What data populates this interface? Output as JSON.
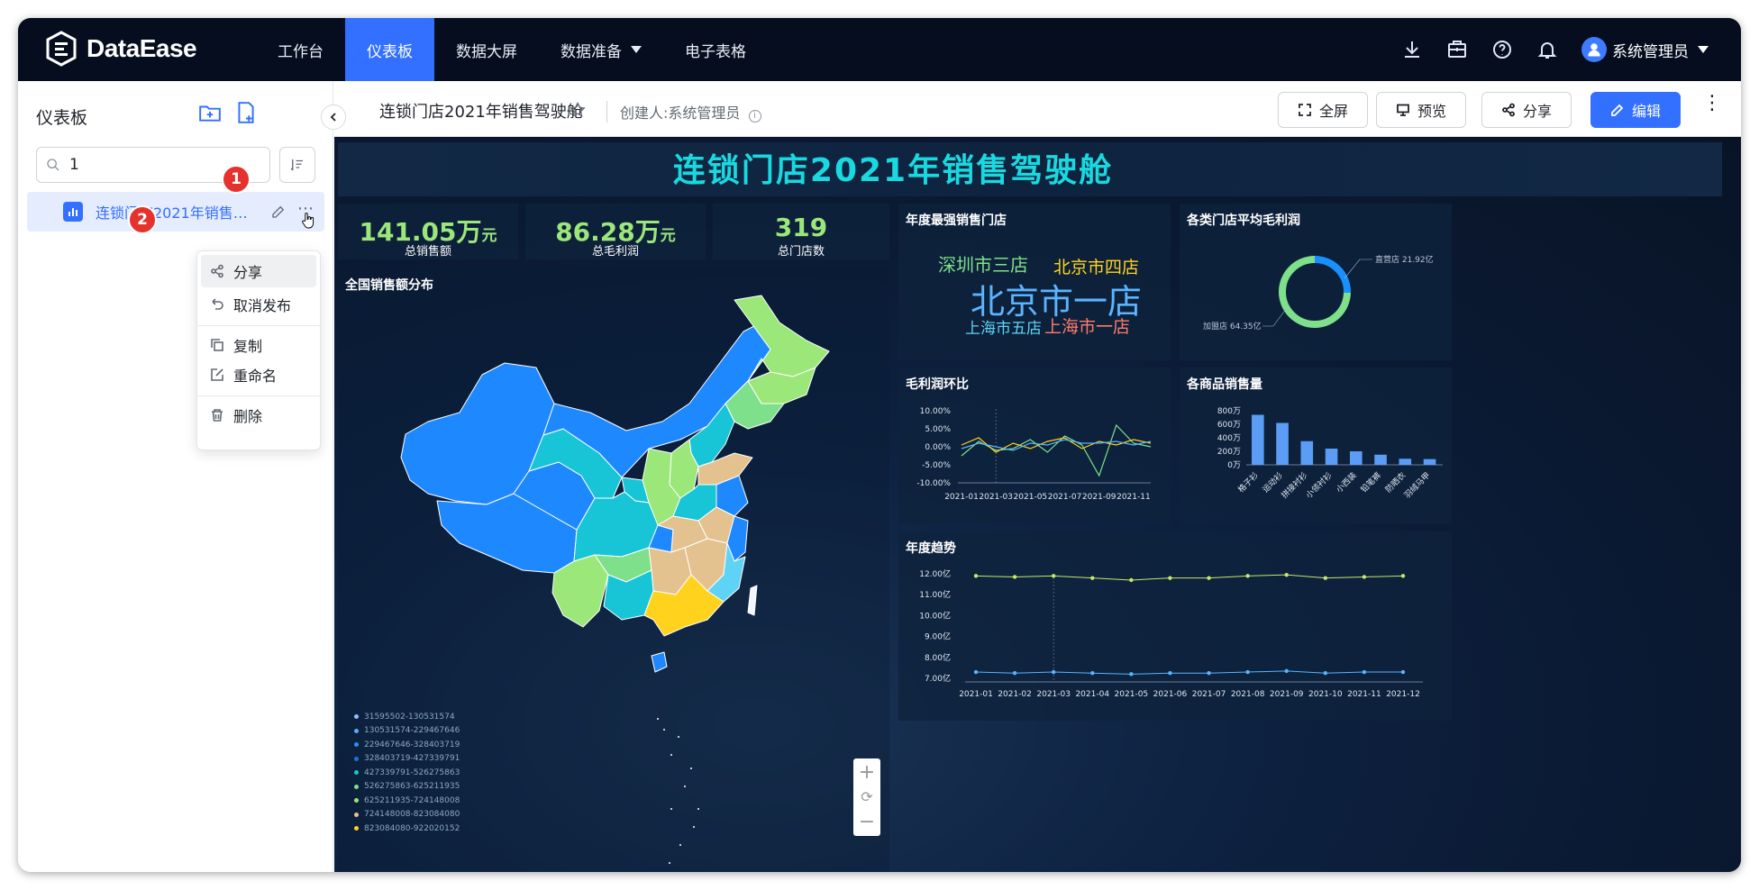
{
  "app": {
    "brand": "DataEase"
  },
  "nav": [
    {
      "label": "工作台",
      "active": false
    },
    {
      "label": "仪表板",
      "active": true
    },
    {
      "label": "数据大屏",
      "active": false
    },
    {
      "label": "数据准备",
      "active": false,
      "dropdown": true
    },
    {
      "label": "电子表格",
      "active": false
    }
  ],
  "topbar": {
    "icons": [
      "download-icon",
      "toolbox-icon",
      "help-icon",
      "bell-icon"
    ],
    "user_name": "系统管理员"
  },
  "sidebar": {
    "title": "仪表板",
    "search_value": "1",
    "item_label": "连锁门店2021年销售…",
    "badges": [
      "1",
      "2"
    ],
    "menu": [
      "分享",
      "取消发布",
      "复制",
      "重命名",
      "删除"
    ]
  },
  "header": {
    "dashboard_title": "连锁门店2021年销售驾驶舱",
    "creator": "创建人:系统管理员",
    "buttons": {
      "fullscreen": "全屏",
      "preview": "预览",
      "share": "分享",
      "edit": "编辑"
    }
  },
  "dashboard": {
    "title": "连锁门店2021年销售驾驶舱",
    "kpis": [
      {
        "value": "141.05万",
        "unit": "元",
        "label": "总销售额"
      },
      {
        "value": "86.28万",
        "unit": "元",
        "label": "总毛利润"
      },
      {
        "value": "319",
        "unit": "",
        "label": "总门店数"
      }
    ],
    "map_title": "全国销售额分布",
    "map_legend": [
      "31595502-130531574",
      "130531574-229467646",
      "229467646-328403719",
      "328403719-427339791",
      "427339791-526275863",
      "526275863-625211935",
      "625211935-724148008",
      "724148008-823084080",
      "823084080-922020152"
    ],
    "map_legend_colors": [
      "#8fc1ff",
      "#5ea8ff",
      "#2f8bff",
      "#1e6fe0",
      "#18c5d6",
      "#7ee08a",
      "#9be77a",
      "#e3c290",
      "#ffd21e"
    ],
    "wordcloud_title": "年度最强销售门店",
    "wordcloud": [
      {
        "text": "深圳市三店",
        "color": "#7ee08a"
      },
      {
        "text": "北京市四店",
        "color": "#ffd21e"
      },
      {
        "text": "北京市一店",
        "color": "#5ab4ff"
      },
      {
        "text": "上海市五店",
        "color": "#5fd3f5"
      },
      {
        "text": "上海市一店",
        "color": "#ff7a6b"
      }
    ],
    "donut_title": "各类门店平均毛利润",
    "profit_title": "毛利润环比",
    "bar_title": "各商品销售量",
    "trend_title": "年度趋势",
    "map_controls": {
      "zoom_in": "+",
      "reset": "⟳",
      "zoom_out": "−"
    }
  },
  "chart_data": [
    {
      "type": "pie",
      "title": "各类门店平均毛利润",
      "slices": [
        {
          "label": "直营店 21.92亿",
          "value": 21.92
        },
        {
          "label": "加盟店 64.35亿",
          "value": 64.35
        }
      ],
      "colors": [
        "#1890ff",
        "#7ee08a"
      ]
    },
    {
      "type": "line",
      "title": "毛利润环比",
      "x": [
        "2021-01",
        "2021-02",
        "2021-03",
        "2021-04",
        "2021-05",
        "2021-06",
        "2021-07",
        "2021-08",
        "2021-09",
        "2021-10",
        "2021-11",
        "2021-12"
      ],
      "x_tick_labels": [
        "2021-01",
        "2021-03",
        "2021-05",
        "2021-07",
        "2021-09",
        "2021-11"
      ],
      "y_tick_labels": [
        "10.00%",
        "5.00%",
        "0.00%",
        "-5.00%",
        "-10.00%"
      ],
      "ylim": [
        -10,
        10
      ],
      "series": [
        {
          "values": [
            -2.5,
            1.5,
            -1.0,
            -0.5,
            2.0,
            -1.5,
            3.0,
            0.5,
            -8.0,
            6.0,
            1.0,
            0.0
          ],
          "color": "#7ee08a"
        },
        {
          "values": [
            0.5,
            2.5,
            -1.5,
            1.0,
            -0.5,
            1.5,
            2.5,
            -0.5,
            1.5,
            0.5,
            2.0,
            1.0
          ],
          "color": "#ffd21e"
        },
        {
          "values": [
            -0.5,
            1.0,
            0.0,
            -1.0,
            1.0,
            0.5,
            2.0,
            1.0,
            1.0,
            1.5,
            0.5,
            1.5
          ],
          "color": "#5ab4ff"
        }
      ]
    },
    {
      "type": "bar",
      "title": "各商品销售量",
      "categories": [
        "格子衫",
        "运动衫",
        "拼接衬衫",
        "小领衬衫",
        "小西装",
        "铅笔裤",
        "防晒衣",
        "羽绒马甲"
      ],
      "values": [
        740,
        620,
        350,
        240,
        200,
        150,
        90,
        85
      ],
      "y_tick_labels": [
        "800万",
        "600万",
        "400万",
        "200万",
        "0万"
      ],
      "ylim": [
        0,
        800
      ],
      "ylabel": "万"
    },
    {
      "type": "line",
      "title": "年度趋势",
      "x": [
        "2021-01",
        "2021-02",
        "2021-03",
        "2021-04",
        "2021-05",
        "2021-06",
        "2021-07",
        "2021-08",
        "2021-09",
        "2021-10",
        "2021-11",
        "2021-12"
      ],
      "y_tick_labels": [
        "12.00亿",
        "11.00亿",
        "10.00亿",
        "9.00亿",
        "8.00亿",
        "7.00亿"
      ],
      "ylim": [
        7,
        12.5
      ],
      "series": [
        {
          "values": [
            11.9,
            11.85,
            11.9,
            11.8,
            11.7,
            11.8,
            11.8,
            11.9,
            11.95,
            11.8,
            11.85,
            11.9
          ],
          "color": "#c5e86c"
        },
        {
          "values": [
            7.3,
            7.25,
            7.3,
            7.25,
            7.2,
            7.25,
            7.25,
            7.3,
            7.35,
            7.25,
            7.3,
            7.3
          ],
          "color": "#5ab4ff"
        }
      ]
    }
  ]
}
